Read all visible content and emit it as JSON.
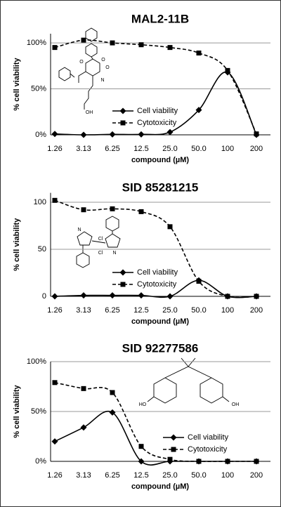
{
  "chart_data": [
    {
      "type": "line",
      "title": "MAL2-11B",
      "x_label": "compound (µM)",
      "y_label": "% cell viability",
      "categories": [
        "1.26",
        "3.13",
        "6.25",
        "12.5",
        "25.0",
        "50.0",
        "100",
        "200"
      ],
      "series": [
        {
          "name": "Cell viability",
          "color": "#000000",
          "marker": "diamond",
          "dashed": false,
          "values": [
            1,
            0,
            0.5,
            0.5,
            3,
            27,
            68,
            0
          ]
        },
        {
          "name": "Cytotoxicity",
          "color": "#000000",
          "marker": "square",
          "dashed": true,
          "values": [
            95,
            103,
            100,
            98,
            95,
            89,
            70,
            1
          ]
        }
      ],
      "ylim": [
        0,
        110
      ],
      "yticks": [
        {
          "value": 0,
          "label": "0%"
        },
        {
          "value": 50,
          "label": "50%"
        },
        {
          "value": 100,
          "label": "100%"
        }
      ],
      "grid": true,
      "smooth": true,
      "legend": "lower-center",
      "structure_labels": [
        "O",
        "O",
        "N",
        "O",
        "OH"
      ]
    },
    {
      "type": "line",
      "title": "SID 85281215",
      "x_label": "compound (µM)",
      "y_label": "% cell viability",
      "categories": [
        "1.26",
        "3.13",
        "6.25",
        "12.5",
        "25.0",
        "50.0",
        "100",
        "200"
      ],
      "series": [
        {
          "name": "Cell viability",
          "color": "#000000",
          "marker": "diamond",
          "dashed": false,
          "values": [
            0,
            1,
            1,
            1,
            0,
            17,
            0,
            0
          ]
        },
        {
          "name": "Cytotoxicity",
          "color": "#000000",
          "marker": "square",
          "dashed": true,
          "values": [
            102,
            92,
            93,
            90,
            74,
            16,
            0,
            0
          ]
        }
      ],
      "ylim": [
        0,
        110
      ],
      "yticks": [
        0,
        50,
        100
      ],
      "grid": true,
      "smooth": true,
      "legend": "lower-center",
      "structure_labels": [
        "N",
        "N",
        "Cl",
        "Cl"
      ]
    },
    {
      "type": "line",
      "title": "SID 92277586",
      "x_label": "compound (µM)",
      "y_label": "% cell viability",
      "categories": [
        "1.26",
        "3.13",
        "6.25",
        "12.5",
        "25.0",
        "50.0",
        "100",
        "200"
      ],
      "series": [
        {
          "name": "Cell viability",
          "color": "#000000",
          "marker": "diamond",
          "dashed": false,
          "values": [
            20,
            34,
            49,
            0,
            0,
            0,
            0,
            0
          ]
        },
        {
          "name": "Cytotoxicity",
          "color": "#000000",
          "marker": "square",
          "dashed": true,
          "values": [
            79,
            73,
            69,
            15,
            2,
            0,
            0,
            0
          ]
        }
      ],
      "ylim": [
        0,
        100
      ],
      "yticks": [
        {
          "value": 0,
          "label": "0%"
        },
        {
          "value": 50,
          "label": "50%"
        },
        {
          "value": 100,
          "label": "100%"
        }
      ],
      "grid": true,
      "smooth": true,
      "legend": "lower-right",
      "structure_labels": [
        "HO",
        "OH"
      ]
    }
  ]
}
